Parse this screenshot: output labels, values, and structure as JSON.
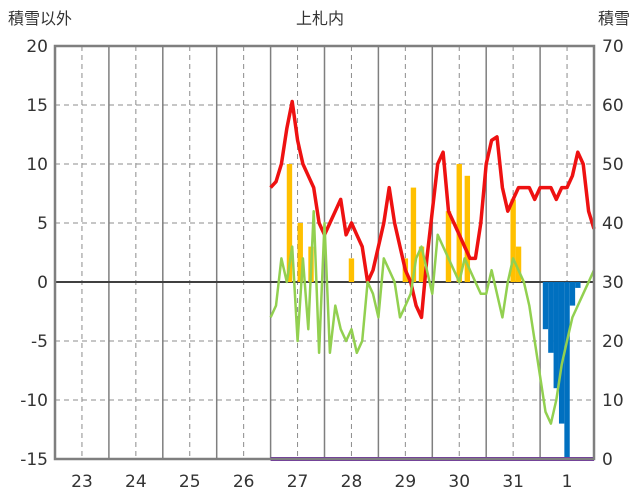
{
  "chart_data": {
    "type": "bar+line",
    "title": "上札内",
    "left_axis_label": "積雪以外",
    "right_axis_label": "積雪",
    "left_ylim": [
      -15,
      20
    ],
    "left_yticks": [
      20,
      15,
      10,
      5,
      0,
      -5,
      -10,
      -15
    ],
    "right_ylim": [
      0,
      70
    ],
    "right_yticks": [
      70,
      60,
      50,
      40,
      30,
      20,
      10,
      0
    ],
    "categories": [
      "23",
      "24",
      "25",
      "26",
      "27",
      "28",
      "29",
      "30",
      "31",
      "1"
    ],
    "grid": true,
    "colors": {
      "temperature": "#ee1111",
      "dewpoint": "#92d050",
      "precip_bar": "#ffc000",
      "snow_bar": "#0070c0",
      "snow_depth": "#7030a0",
      "frame": "#7f7f7f",
      "zero_line": "#404040"
    },
    "series": [
      {
        "key": "temperature",
        "x": [
          26.5,
          26.6,
          26.7,
          26.8,
          26.9,
          27.0,
          27.1,
          27.2,
          27.3,
          27.4,
          27.5,
          27.6,
          27.7,
          27.8,
          27.9,
          28.0,
          28.1,
          28.2,
          28.3,
          28.4,
          28.5,
          28.6,
          28.7,
          28.8,
          28.9,
          29.0,
          29.1,
          29.2,
          29.3,
          29.4,
          29.5,
          29.6,
          29.7,
          29.8,
          29.9,
          30.0,
          30.1,
          30.2,
          30.3,
          30.4,
          30.5,
          30.6,
          30.7,
          30.8,
          30.9,
          31.0,
          31.1,
          31.2,
          31.3,
          31.4,
          31.5,
          31.6,
          31.7,
          31.8,
          31.9,
          32.0,
          32.1,
          32.2,
          32.3,
          32.4,
          32.5
        ],
        "y": [
          8,
          8.5,
          10,
          13,
          15.3,
          12,
          10,
          9,
          8,
          5,
          4,
          5,
          6,
          7,
          4,
          5,
          4,
          3,
          0,
          1,
          3,
          5,
          8,
          5,
          3,
          1,
          0,
          -2,
          -3,
          2,
          6,
          10,
          11,
          6,
          5,
          4,
          3,
          2,
          2,
          5,
          10,
          12,
          12.3,
          8,
          6,
          7,
          8,
          8,
          8,
          7,
          8,
          8,
          8,
          7,
          8,
          8,
          9,
          11,
          10,
          6,
          4.5
        ]
      },
      {
        "key": "dewpoint",
        "x": [
          26.5,
          26.6,
          26.7,
          26.8,
          26.9,
          27.0,
          27.1,
          27.2,
          27.3,
          27.4,
          27.5,
          27.6,
          27.7,
          27.8,
          27.9,
          28.0,
          28.1,
          28.2,
          28.3,
          28.4,
          28.5,
          28.6,
          28.7,
          28.8,
          28.9,
          29.0,
          29.1,
          29.2,
          29.3,
          29.4,
          29.5,
          29.6,
          29.7,
          29.8,
          29.9,
          30.0,
          30.1,
          30.2,
          30.3,
          30.4,
          30.5,
          30.6,
          30.7,
          30.8,
          30.9,
          31.0,
          31.1,
          31.2,
          31.3,
          31.4,
          31.5,
          31.6,
          31.7,
          31.8,
          31.9,
          32.0,
          32.1,
          32.2,
          32.3,
          32.4,
          32.5
        ],
        "y": [
          -3,
          -2,
          2,
          0,
          3,
          -5,
          2,
          -4,
          6,
          -6,
          5,
          -6,
          -2,
          -4,
          -5,
          -4,
          -6,
          -5,
          0,
          -1,
          -3,
          2,
          1,
          0,
          -3,
          -2,
          -1,
          2,
          3,
          1,
          -1,
          4,
          3,
          2,
          1,
          0,
          2,
          1,
          0,
          -1,
          -1,
          1,
          -1,
          -3,
          0,
          2,
          1,
          0,
          -2,
          -5,
          -8,
          -11,
          -12,
          -10,
          -7,
          -5,
          -3,
          -2,
          -1,
          0,
          1
        ]
      },
      {
        "key": "snow_depth",
        "x": [
          26.5,
          32.5
        ],
        "y": [
          0,
          0
        ]
      },
      {
        "key": "precip_bar",
        "x": [
          26.85,
          27.05,
          27.25,
          28.0,
          29.0,
          29.15,
          29.3,
          29.8,
          30.0,
          30.15,
          31.0,
          31.1
        ],
        "y": [
          10,
          5,
          3,
          2,
          2,
          8,
          3,
          6,
          10,
          9,
          7,
          3
        ]
      },
      {
        "key": "snow_bar",
        "x": [
          31.6,
          31.7,
          31.8,
          31.9,
          32.0,
          32.1,
          32.2
        ],
        "y": [
          -4,
          -6,
          -9,
          -12,
          -15,
          -2,
          -0.5
        ]
      }
    ]
  }
}
